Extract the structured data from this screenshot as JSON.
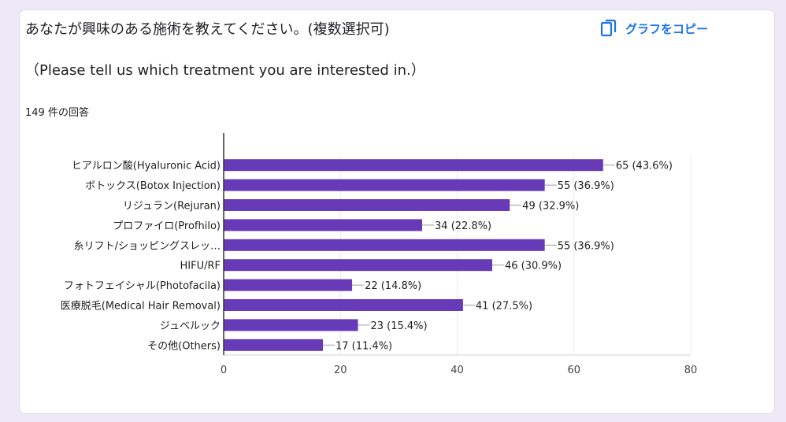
{
  "question": {
    "title": "あなたが興味のある施術を教えてください。(複数選択可)",
    "subtitle": "（Please tell us which treatment you are interested in.）",
    "response_count": "149 件の回答",
    "copy_label": "グラフをコピー"
  },
  "colors": {
    "bar": "#673ab7",
    "accent": "#1a73e8",
    "background": "#ede9f7"
  },
  "chart_data": {
    "type": "bar",
    "orientation": "horizontal",
    "categories": [
      "ヒアルロン酸(Hyaluronic Acid)",
      "ボトックス(Botox Injection)",
      "リジュラン(Rejuran)",
      "プロファイロ(Profhilo)",
      "糸リフト/ショッピングスレッ…",
      "HIFU/RF",
      "フォトフェイシャル(Photofacila)",
      "医療脱毛(Medical Hair Removal)",
      "ジュベルック",
      "その他(Others)"
    ],
    "values": [
      65,
      55,
      49,
      34,
      55,
      46,
      22,
      41,
      23,
      17
    ],
    "value_labels": [
      "65 (43.6%)",
      "55 (36.9%)",
      "49 (32.9%)",
      "34 (22.8%)",
      "55 (36.9%)",
      "46 (30.9%)",
      "22 (14.8%)",
      "41 (27.5%)",
      "23 (15.4%)",
      "17 (11.4%)"
    ],
    "xlim": [
      0,
      80
    ],
    "xticks": [
      0,
      20,
      40,
      60,
      80
    ],
    "grid": true
  }
}
